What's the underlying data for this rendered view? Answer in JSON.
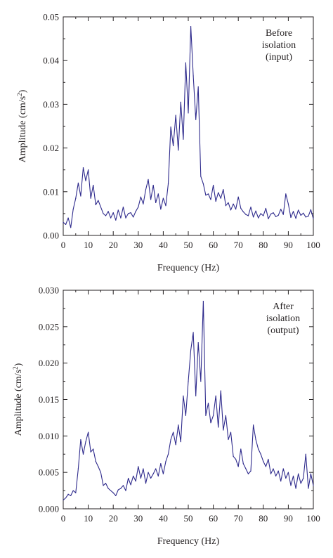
{
  "chart_data": [
    {
      "type": "line",
      "xlabel": "Frequency (Hz)",
      "ylabel": "Amplitude (cm/s",
      "ylabel_sup": "2",
      "ylabel_end": ")",
      "annotation": [
        "Before",
        "isolation",
        "(input)"
      ],
      "xlim": [
        0,
        100
      ],
      "ylim": [
        0,
        0.05
      ],
      "xticks": [
        "0",
        "10",
        "20",
        "30",
        "40",
        "50",
        "60",
        "70",
        "80",
        "90",
        "100"
      ],
      "yticks": [
        "0.00",
        "0.01",
        "0.02",
        "0.03",
        "0.04",
        "0.05"
      ],
      "grid": false,
      "color": "#2e2a8c",
      "series": [
        {
          "x": [
            0,
            1,
            2,
            3,
            4,
            5,
            6,
            7,
            8,
            9,
            10,
            11,
            12,
            13,
            14,
            15,
            16,
            17,
            18,
            19,
            20,
            21,
            22,
            23,
            24,
            25,
            26,
            27,
            28,
            29,
            30,
            31,
            32,
            33,
            34,
            35,
            36,
            37,
            38,
            39,
            40,
            41,
            42,
            43,
            44,
            45,
            46,
            47,
            48,
            49,
            50,
            51,
            52,
            53,
            54,
            55,
            56,
            57,
            58,
            59,
            60,
            61,
            62,
            63,
            64,
            65,
            66,
            67,
            68,
            69,
            70,
            71,
            72,
            73,
            74,
            75,
            76,
            77,
            78,
            79,
            80,
            81,
            82,
            83,
            84,
            85,
            86,
            87,
            88,
            89,
            90,
            91,
            92,
            93,
            94,
            95,
            96,
            97,
            98,
            99,
            100
          ],
          "y": [
            0.003,
            0.0025,
            0.004,
            0.0018,
            0.006,
            0.0085,
            0.012,
            0.009,
            0.0155,
            0.0125,
            0.015,
            0.0085,
            0.0115,
            0.007,
            0.008,
            0.0065,
            0.005,
            0.0045,
            0.0055,
            0.004,
            0.0052,
            0.0035,
            0.0058,
            0.004,
            0.0065,
            0.004,
            0.005,
            0.0052,
            0.0042,
            0.0055,
            0.0065,
            0.0088,
            0.0072,
            0.0105,
            0.0128,
            0.0082,
            0.0115,
            0.0075,
            0.0095,
            0.006,
            0.0085,
            0.0068,
            0.0118,
            0.0248,
            0.0205,
            0.0275,
            0.0195,
            0.0305,
            0.022,
            0.0395,
            0.028,
            0.0478,
            0.0365,
            0.0265,
            0.034,
            0.0135,
            0.0118,
            0.0092,
            0.0095,
            0.0082,
            0.0115,
            0.0078,
            0.0098,
            0.0085,
            0.0105,
            0.0068,
            0.0075,
            0.0058,
            0.0072,
            0.006,
            0.0088,
            0.0062,
            0.0054,
            0.0048,
            0.0045,
            0.0065,
            0.0042,
            0.0056,
            0.004,
            0.005,
            0.0045,
            0.0062,
            0.0038,
            0.0049,
            0.0052,
            0.0043,
            0.0046,
            0.006,
            0.0048,
            0.0095,
            0.0072,
            0.0041,
            0.0055,
            0.0039,
            0.0058,
            0.0046,
            0.0051,
            0.0042,
            0.0044,
            0.0059,
            0.0038
          ]
        }
      ]
    },
    {
      "type": "line",
      "xlabel": "Frequency (Hz)",
      "ylabel": "Amplitude (cm/s",
      "ylabel_sup": "2",
      "ylabel_end": ")",
      "annotation": [
        "After",
        "isolation",
        "(output)"
      ],
      "xlim": [
        0,
        100
      ],
      "ylim": [
        0,
        0.03
      ],
      "xticks": [
        "0",
        "10",
        "20",
        "30",
        "40",
        "50",
        "60",
        "70",
        "80",
        "90",
        "100"
      ],
      "yticks": [
        "0.000",
        "0.005",
        "0.010",
        "0.015",
        "0.020",
        "0.025",
        "0.030"
      ],
      "grid": false,
      "color": "#2e2a8c",
      "series": [
        {
          "x": [
            0,
            1,
            2,
            3,
            4,
            5,
            6,
            7,
            8,
            9,
            10,
            11,
            12,
            13,
            14,
            15,
            16,
            17,
            18,
            19,
            20,
            21,
            22,
            23,
            24,
            25,
            26,
            27,
            28,
            29,
            30,
            31,
            32,
            33,
            34,
            35,
            36,
            37,
            38,
            39,
            40,
            41,
            42,
            43,
            44,
            45,
            46,
            47,
            48,
            49,
            50,
            51,
            52,
            53,
            54,
            55,
            56,
            57,
            58,
            59,
            60,
            61,
            62,
            63,
            64,
            65,
            66,
            67,
            68,
            69,
            70,
            71,
            72,
            73,
            74,
            75,
            76,
            77,
            78,
            79,
            80,
            81,
            82,
            83,
            84,
            85,
            86,
            87,
            88,
            89,
            90,
            91,
            92,
            93,
            94,
            95,
            96,
            97,
            98,
            99,
            100
          ],
          "y": [
            0.0012,
            0.0015,
            0.002,
            0.0018,
            0.0025,
            0.0022,
            0.0055,
            0.0095,
            0.0075,
            0.0092,
            0.0105,
            0.0078,
            0.0082,
            0.0065,
            0.0058,
            0.005,
            0.0032,
            0.0035,
            0.0028,
            0.0025,
            0.0022,
            0.0018,
            0.0026,
            0.0028,
            0.0032,
            0.0025,
            0.0042,
            0.0033,
            0.0045,
            0.0038,
            0.0058,
            0.0042,
            0.0055,
            0.0035,
            0.005,
            0.0042,
            0.0048,
            0.0055,
            0.0045,
            0.0062,
            0.0048,
            0.0065,
            0.0075,
            0.0095,
            0.0105,
            0.0088,
            0.0115,
            0.0092,
            0.0155,
            0.0128,
            0.0175,
            0.0218,
            0.0242,
            0.0155,
            0.0228,
            0.0175,
            0.0285,
            0.0128,
            0.0145,
            0.0118,
            0.0128,
            0.0155,
            0.0112,
            0.0162,
            0.0108,
            0.0128,
            0.0095,
            0.0105,
            0.0072,
            0.0068,
            0.0058,
            0.0082,
            0.0062,
            0.0055,
            0.0048,
            0.0052,
            0.0115,
            0.0095,
            0.0082,
            0.0075,
            0.0065,
            0.0058,
            0.0068,
            0.0048,
            0.0055,
            0.0045,
            0.0052,
            0.0038,
            0.0055,
            0.0042,
            0.005,
            0.0032,
            0.0045,
            0.0028,
            0.0048,
            0.0035,
            0.0042,
            0.0075,
            0.0028,
            0.0048,
            0.0032
          ]
        }
      ]
    }
  ]
}
